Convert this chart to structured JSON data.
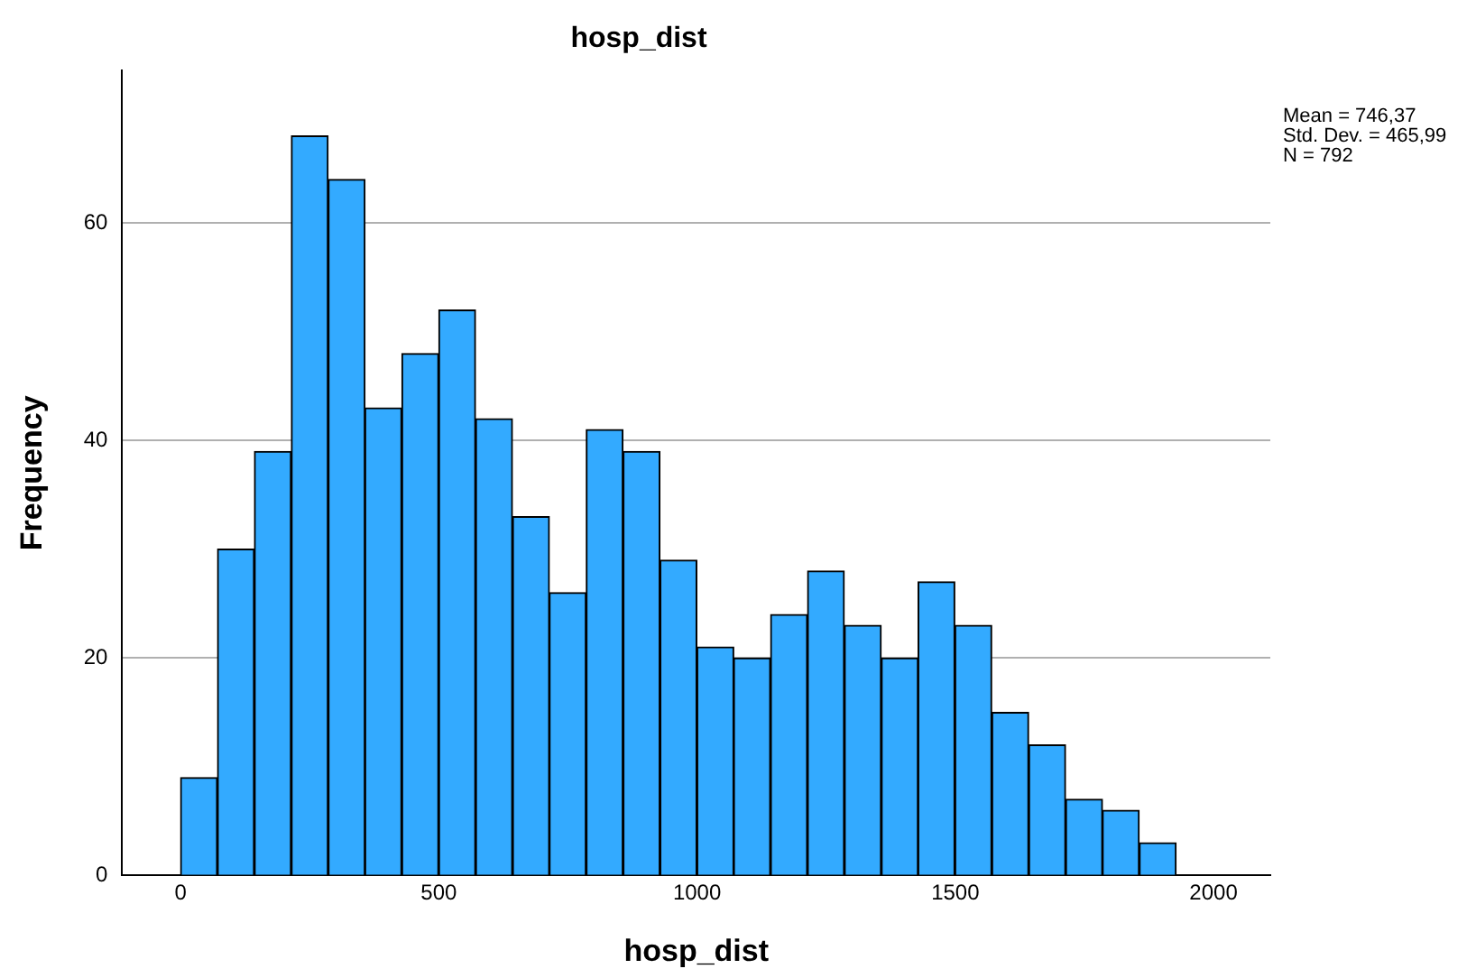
{
  "chart_data": {
    "type": "histogram",
    "title": "hosp_dist",
    "xlabel": "hosp_dist",
    "ylabel": "Frequency",
    "bins": [
      0,
      71,
      143,
      214,
      286,
      357,
      428,
      500,
      571,
      643,
      714,
      785,
      857,
      928,
      1000,
      1071,
      1142,
      1214,
      1285,
      1357,
      1428,
      1499,
      1571,
      1642,
      1714,
      1785,
      1856,
      1928
    ],
    "values": [
      9,
      30,
      39,
      68,
      64,
      43,
      48,
      52,
      42,
      33,
      26,
      41,
      39,
      29,
      21,
      20,
      24,
      28,
      23,
      20,
      27,
      23,
      15,
      12,
      7,
      6,
      3
    ],
    "color": "#33aaff",
    "xlim": [
      -113,
      2110
    ],
    "xticks": [
      0,
      500,
      1000,
      1500,
      2000
    ],
    "ylim": [
      0,
      74
    ],
    "yticks": [
      0,
      20,
      40,
      60
    ],
    "grid": "y",
    "legend": false,
    "annotations": [
      "Mean = 746,37",
      "Std. Dev. = 465,99",
      "N = 792"
    ]
  }
}
